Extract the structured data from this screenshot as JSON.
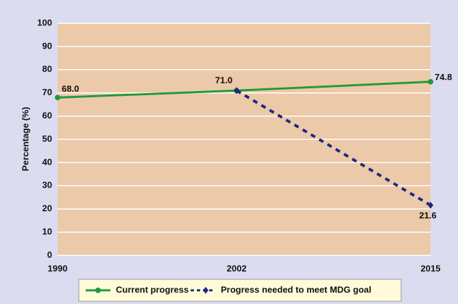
{
  "chart_data": {
    "type": "line",
    "x": [
      1990,
      2002,
      2015
    ],
    "xlim": [
      1990,
      2015
    ],
    "xticks": [
      1990,
      2002,
      2015
    ],
    "ylim": [
      0,
      100
    ],
    "yticks": [
      0,
      10,
      20,
      30,
      40,
      50,
      60,
      70,
      80,
      90,
      100
    ],
    "ylabel": "Percentage (%)",
    "grid": true,
    "series": [
      {
        "name": "Current progress",
        "color": "#1e9a3c",
        "line_style": "solid",
        "marker": "circle",
        "values": [
          68.0,
          71.0,
          74.8
        ],
        "value_labels": [
          "68.0",
          "71.0",
          "74.8"
        ]
      },
      {
        "name": "Progress needed to meet MDG goal",
        "color": "#1c2a80",
        "line_style": "dashed",
        "marker": "diamond",
        "values": [
          null,
          71.0,
          21.6
        ],
        "value_labels": [
          null,
          null,
          "21.6"
        ]
      }
    ],
    "value_label_color": "#e0102a"
  }
}
